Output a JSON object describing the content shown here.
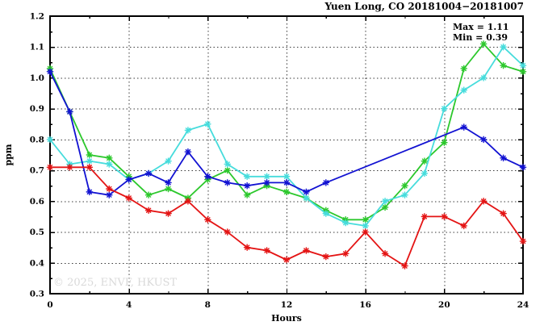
{
  "title": "Yuen Long, CO 20181004−20181007",
  "annotation": {
    "max_label": "Max = 1.11",
    "min_label": "Min = 0.39"
  },
  "watermark": "© 2025, ENVF, HKUST",
  "chart_data": {
    "type": "line",
    "title": "Yuen Long, CO 20181004−20181007",
    "xlabel": "Hours",
    "ylabel": "ppm",
    "xlim": [
      0,
      24
    ],
    "ylim": [
      0.3,
      1.2
    ],
    "x_tick_values": [
      0,
      4,
      8,
      12,
      16,
      20,
      24
    ],
    "x_tick_labels": [
      "0",
      "4",
      "8",
      "12",
      "16",
      "20",
      "24"
    ],
    "x_minor_tick_values": [
      2,
      6,
      10,
      14,
      18,
      22
    ],
    "y_tick_values": [
      0.3,
      0.4,
      0.5,
      0.6,
      0.7,
      0.8,
      0.9,
      1.0,
      1.1,
      1.2
    ],
    "y_tick_labels": [
      "0.3",
      "0.4",
      "0.5",
      "0.6",
      "0.7",
      "0.8",
      "0.9",
      "1.0",
      "1.1",
      "1.2"
    ],
    "y_minor_step": 0.05,
    "grid": true,
    "legend": "none",
    "marker": "asterisk",
    "max_value": 1.11,
    "min_value": 0.39,
    "series": [
      {
        "name": "green",
        "color": "#2cc82c",
        "points": [
          [
            0,
            1.03
          ],
          [
            1,
            0.89
          ],
          [
            2,
            0.75
          ],
          [
            3,
            0.74
          ],
          [
            4,
            0.68
          ],
          [
            5,
            0.62
          ],
          [
            6,
            0.64
          ],
          [
            7,
            0.61
          ],
          [
            8,
            0.67
          ],
          [
            9,
            0.7
          ],
          [
            10,
            0.62
          ],
          [
            11,
            0.65
          ],
          [
            12,
            0.63
          ],
          [
            13,
            0.61
          ],
          [
            14,
            0.57
          ],
          [
            15,
            0.54
          ],
          [
            16,
            0.54
          ],
          [
            17,
            0.58
          ],
          [
            18,
            0.65
          ],
          [
            19,
            0.73
          ],
          [
            20,
            0.79
          ],
          [
            21,
            1.03
          ],
          [
            22,
            1.11
          ],
          [
            23,
            1.04
          ],
          [
            24,
            1.02
          ]
        ]
      },
      {
        "name": "cyan",
        "color": "#46dcdc",
        "points": [
          [
            0,
            0.8
          ],
          [
            1,
            0.72
          ],
          [
            2,
            0.73
          ],
          [
            3,
            0.72
          ],
          [
            4,
            0.67
          ],
          [
            5,
            0.69
          ],
          [
            6,
            0.73
          ],
          [
            7,
            0.83
          ],
          [
            8,
            0.85
          ],
          [
            9,
            0.72
          ],
          [
            10,
            0.68
          ],
          [
            11,
            0.68
          ],
          [
            12,
            0.68
          ],
          [
            13,
            0.61
          ],
          [
            14,
            0.56
          ],
          [
            15,
            0.53
          ],
          [
            16,
            0.52
          ],
          [
            17,
            0.6
          ],
          [
            18,
            0.62
          ],
          [
            19,
            0.69
          ],
          [
            20,
            0.9
          ],
          [
            21,
            0.96
          ],
          [
            22,
            1.0
          ],
          [
            23,
            1.1
          ],
          [
            24,
            1.04
          ]
        ]
      },
      {
        "name": "blue",
        "color": "#1212d2",
        "points": [
          [
            0,
            1.02
          ],
          [
            1,
            0.89
          ],
          [
            2,
            0.63
          ],
          [
            3,
            0.62
          ],
          [
            4,
            0.67
          ],
          [
            5,
            0.69
          ],
          [
            6,
            0.66
          ],
          [
            7,
            0.76
          ],
          [
            8,
            0.68
          ],
          [
            9,
            0.66
          ],
          [
            10,
            0.65
          ],
          [
            11,
            0.66
          ],
          [
            12,
            0.66
          ],
          [
            13,
            0.63
          ],
          [
            14,
            0.66
          ],
          [
            21,
            0.84
          ],
          [
            22,
            0.8
          ],
          [
            23,
            0.74
          ],
          [
            24,
            0.71
          ]
        ]
      },
      {
        "name": "red",
        "color": "#e41414",
        "points": [
          [
            0,
            0.71
          ],
          [
            1,
            0.71
          ],
          [
            2,
            0.71
          ],
          [
            3,
            0.64
          ],
          [
            4,
            0.61
          ],
          [
            5,
            0.57
          ],
          [
            6,
            0.56
          ],
          [
            7,
            0.6
          ],
          [
            8,
            0.54
          ],
          [
            9,
            0.5
          ],
          [
            10,
            0.45
          ],
          [
            11,
            0.44
          ],
          [
            12,
            0.41
          ],
          [
            13,
            0.44
          ],
          [
            14,
            0.42
          ],
          [
            15,
            0.43
          ],
          [
            16,
            0.5
          ],
          [
            17,
            0.43
          ],
          [
            18,
            0.39
          ],
          [
            19,
            0.55
          ],
          [
            20,
            0.55
          ],
          [
            21,
            0.52
          ],
          [
            22,
            0.6
          ],
          [
            23,
            0.56
          ],
          [
            24,
            0.47
          ]
        ]
      }
    ]
  }
}
